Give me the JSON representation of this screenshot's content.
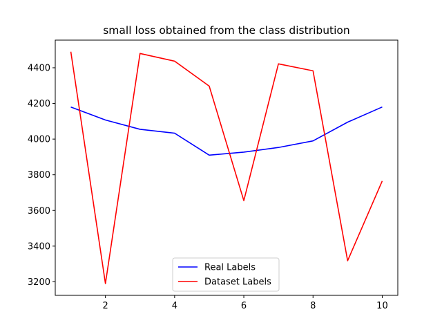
{
  "chart_data": {
    "type": "line",
    "title": "small loss obtained from the class distribution",
    "xlabel": "",
    "ylabel": "",
    "x": [
      1,
      2,
      3,
      4,
      5,
      6,
      7,
      8,
      9,
      10
    ],
    "xlim": [
      0.55,
      10.45
    ],
    "ylim": [
      3124,
      4555
    ],
    "xticks": [
      2,
      4,
      6,
      8,
      10
    ],
    "yticks": [
      3200,
      3400,
      3600,
      3800,
      4000,
      4200,
      4400
    ],
    "grid": false,
    "legend_position": "lower center",
    "series": [
      {
        "name": "Real Labels",
        "color": "#0000ff",
        "values": [
          4180,
          4107,
          4055,
          4033,
          3910,
          3927,
          3953,
          3990,
          4095,
          4180
        ]
      },
      {
        "name": "Dataset Labels",
        "color": "#ff0000",
        "values": [
          4490,
          3190,
          4480,
          4437,
          4297,
          3655,
          4422,
          4383,
          3318,
          3765
        ]
      }
    ]
  }
}
